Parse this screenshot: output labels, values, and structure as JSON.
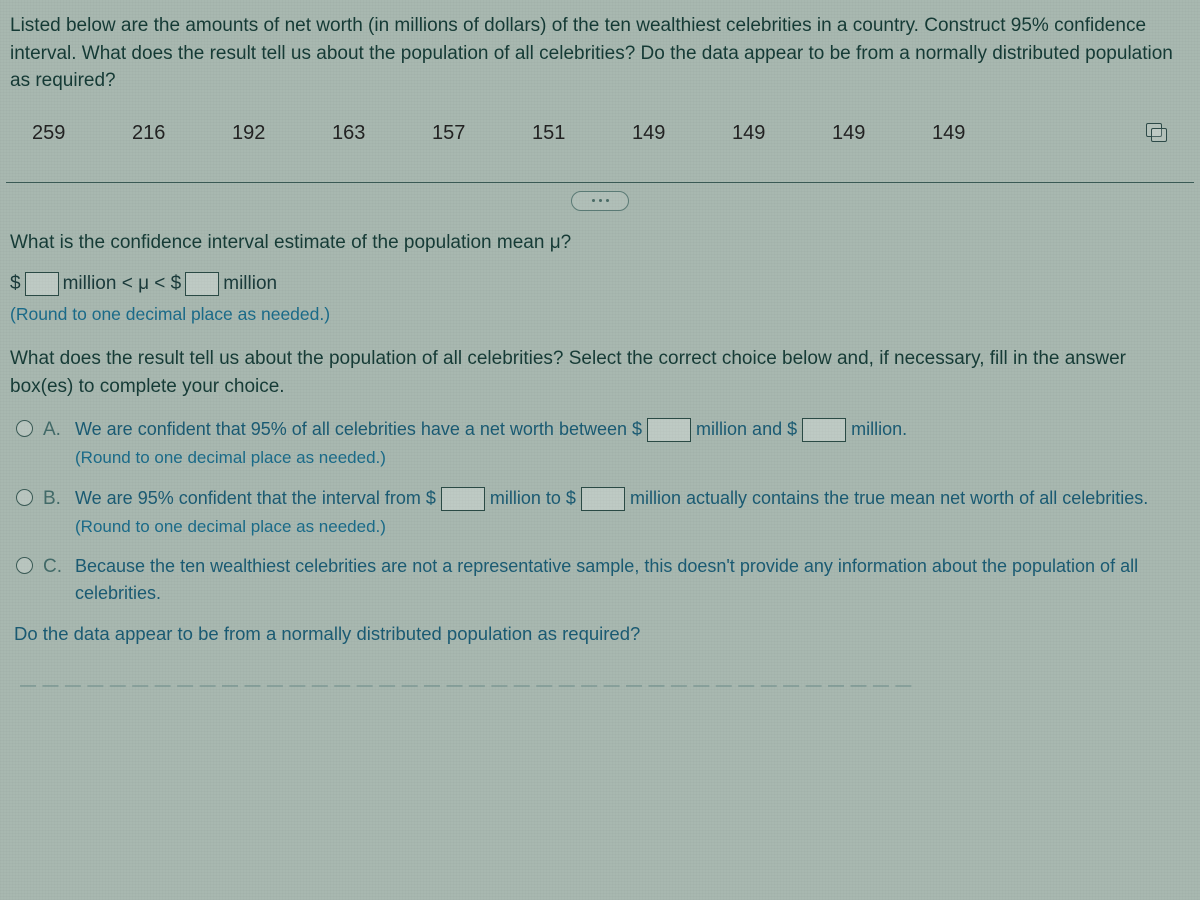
{
  "colors": {
    "background": "#a8b8b0",
    "text_primary": "#163b36",
    "text_link": "#1a5a72",
    "text_hint": "#1a6a88",
    "border": "#3a5a55"
  },
  "intro": "Listed below are the amounts of net worth (in millions of dollars) of the ten wealthiest celebrities in a country. Construct 95% confidence interval. What does the result tell us about the population of all celebrities? Do the data appear to be from a normally distributed population as required?",
  "data_values": [
    "259",
    "216",
    "192",
    "163",
    "157",
    "151",
    "149",
    "149",
    "149",
    "149"
  ],
  "q1": "What is the confidence interval estimate of the population mean μ?",
  "fill": {
    "prefix": "$",
    "mid1": "million < μ < $",
    "suffix": "million"
  },
  "hint": "(Round to one decimal place as needed.)",
  "q2": "What does the result tell us about the population of all celebrities? Select the correct choice below and, if necessary, fill in the answer box(es) to complete your choice.",
  "choices": {
    "A": {
      "pre": "We are confident that 95% of all celebrities have a net worth between $",
      "mid": "million and $",
      "post": "million.",
      "hint": "(Round to one decimal place as needed.)"
    },
    "B": {
      "pre": "We are 95% confident that the interval from $",
      "mid": "million to $",
      "post": "million actually contains the true mean net worth of all celebrities.",
      "hint": "(Round to one decimal place as needed.)"
    },
    "C": {
      "text": "Because the ten wealthiest celebrities are not a representative sample, this doesn't provide any information about the population of all celebrities."
    }
  },
  "q3": "Do the data appear to be from a normally distributed population as required?",
  "trail": "— — — — — — — — — — — — — — — — — — — — — — — — — — — — — — — — — — — — — — — —"
}
